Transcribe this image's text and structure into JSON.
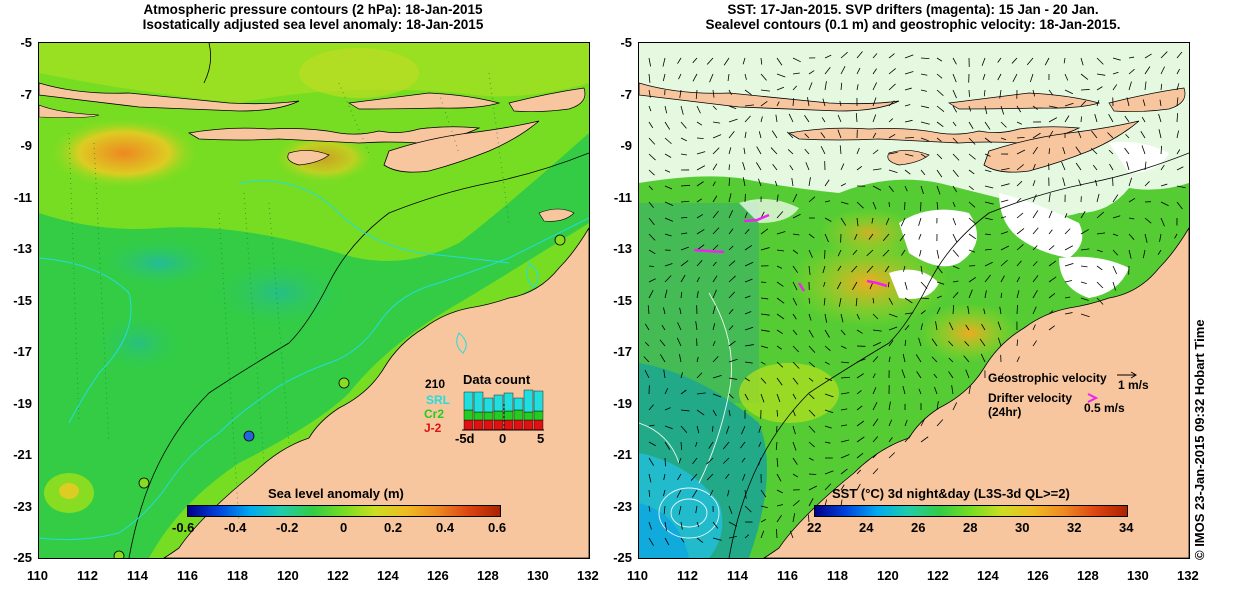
{
  "left_panel": {
    "title_line1": "Atmospheric pressure contours (2 hPa): 18-Jan-2015",
    "title_line2": "Isostatically adjusted sea level anomaly: 18-Jan-2015",
    "colorbar_label": "Sea level anomaly (m)",
    "colorbar_ticks": [
      "-0.6",
      "-0.4",
      "-0.2",
      "0",
      "0.2",
      "0.4",
      "0.6"
    ],
    "inset": {
      "title": "Data count",
      "max_label": "210",
      "series_labels": [
        "SRL",
        "Cr2",
        "J-2"
      ],
      "series_colors": [
        "#22dddd",
        "#22cc22",
        "#dd1111"
      ],
      "x_ticks": [
        "-5d",
        "0",
        "5"
      ]
    }
  },
  "right_panel": {
    "title_line1": "SST: 17-Jan-2015. SVP drifters (magenta): 15 Jan - 20 Jan.",
    "title_line2": "Sealevel contours (0.1 m) and geostrophic velocity: 18-Jan-2015.",
    "colorbar_label": "SST (°C) 3d night&day (L3S-3d QL>=2)",
    "colorbar_ticks": [
      "22",
      "24",
      "26",
      "28",
      "30",
      "32",
      "34"
    ],
    "velocity_legend": {
      "geo_label": "Geostrophic velocity",
      "geo_scale": "1 m/s",
      "drifter_label": "Drifter velocity",
      "drifter_sub": "(24hr)",
      "drifter_scale": "0.5 m/s"
    }
  },
  "axes": {
    "x_ticks": [
      "110",
      "112",
      "114",
      "116",
      "118",
      "120",
      "122",
      "124",
      "126",
      "128",
      "130",
      "132"
    ],
    "y_ticks": [
      "-5",
      "-7",
      "-9",
      "-11",
      "-13",
      "-15",
      "-17",
      "-19",
      "-21",
      "-23",
      "-25"
    ]
  },
  "credit": "© IMOS 23-Jan-2015 09:32 Hobart Time",
  "colors": {
    "land": "#f8c69e",
    "sea_green": "#33cc33",
    "sea_lightgreen": "#88dd22",
    "sea_teal": "#22bb88",
    "sea_yellow": "#ddcc22",
    "sea_orange": "#ee9922",
    "cloud": "#ffffff",
    "sst_cyan": "#22bbdd",
    "drifter": "#ee22ee"
  }
}
